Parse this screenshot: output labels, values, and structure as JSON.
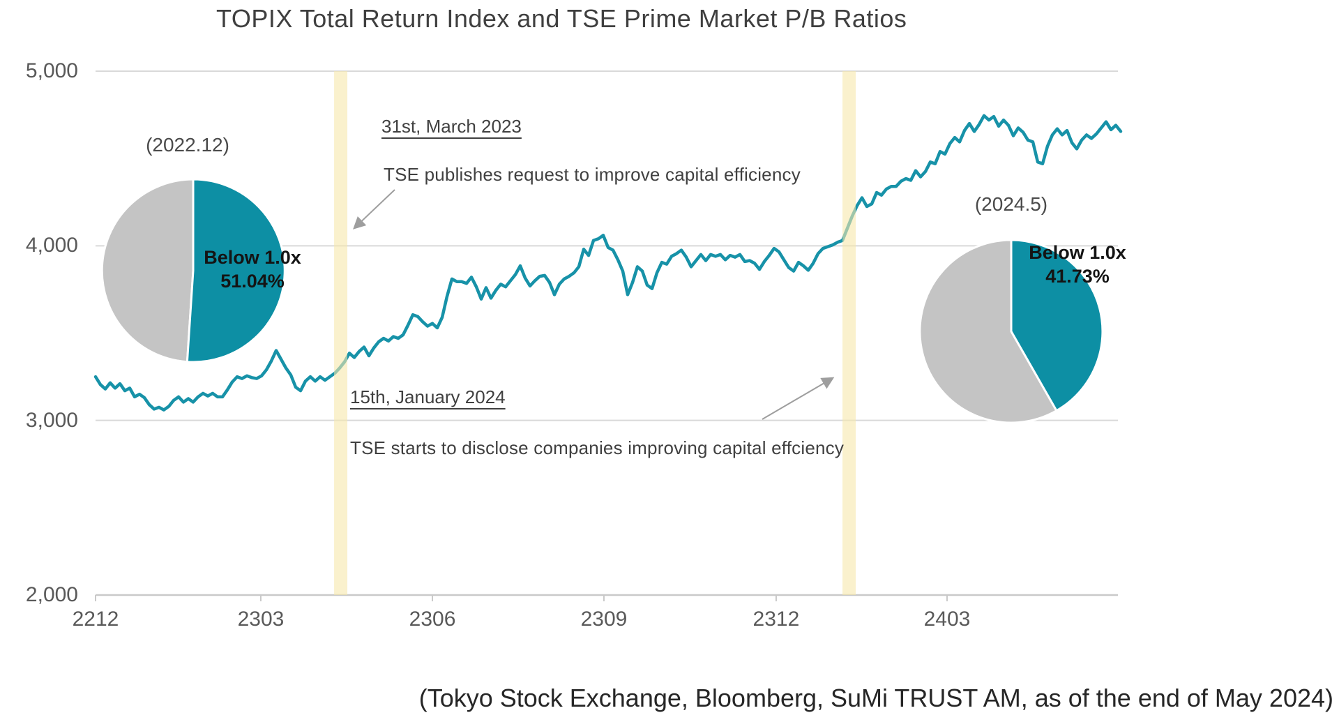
{
  "title": "TOPIX Total Return Index and TSE Prime Market P/B Ratios",
  "source_note": "(Tokyo Stock Exchange, Bloomberg, SuMi TRUST AM, as of the end of May 2024)",
  "annotations": {
    "march2023": {
      "date": "31st, March 2023",
      "text": "TSE publishes request to improve capital efficiency"
    },
    "january2024": {
      "date": "15th, January 2024",
      "text": "TSE starts to disclose companies improving capital effciency"
    }
  },
  "colors": {
    "line_teal": "#1792A8",
    "pie_teal": "#0D8FA4",
    "pie_gray": "#C4C4C4",
    "band_fill": "#F7E7AB",
    "band_opacity": 0.6,
    "gridline": "#D9D9D9",
    "axis": "#C9C9C9",
    "arrow": "#9E9E9E",
    "tick_text": "#595959"
  },
  "chart_data": [
    {
      "type": "line",
      "title": "TOPIX Total Return Index and TSE Prime Market P/B Ratios",
      "xlabel": "",
      "ylabel": "",
      "ylim": [
        2000,
        5000
      ],
      "grid": true,
      "y_axis": {
        "ticks": [
          {
            "label": "5,000",
            "value": 5000
          },
          {
            "label": "4,000",
            "value": 4000
          },
          {
            "label": "3,000",
            "value": 3000
          },
          {
            "label": "2,000",
            "value": 2000
          }
        ]
      },
      "x_axis": {
        "ticks": [
          {
            "label": "2212",
            "f": 0.0
          },
          {
            "label": "2303",
            "f": 0.1612
          },
          {
            "label": "2306",
            "f": 0.3286
          },
          {
            "label": "2309",
            "f": 0.4959
          },
          {
            "label": "2312",
            "f": 0.6639
          },
          {
            "label": "2403",
            "f": 0.8306
          }
        ]
      },
      "highlight_bands": [
        {
          "f0": 0.2327,
          "f1": 0.2456,
          "event": "31st, March 2023"
        },
        {
          "f0": 0.7286,
          "f1": 0.7415,
          "event": "15th, January 2024"
        }
      ],
      "series": [
        {
          "name": "TOPIX Total Return Index",
          "values": [
            3250,
            3205,
            3180,
            3215,
            3185,
            3210,
            3170,
            3185,
            3135,
            3150,
            3130,
            3090,
            3065,
            3075,
            3060,
            3080,
            3115,
            3135,
            3105,
            3125,
            3105,
            3135,
            3155,
            3140,
            3155,
            3135,
            3135,
            3175,
            3220,
            3250,
            3240,
            3255,
            3245,
            3240,
            3255,
            3290,
            3340,
            3400,
            3350,
            3300,
            3260,
            3190,
            3170,
            3225,
            3250,
            3225,
            3250,
            3230,
            3250,
            3270,
            3300,
            3335,
            3385,
            3360,
            3395,
            3420,
            3370,
            3415,
            3450,
            3470,
            3455,
            3480,
            3470,
            3490,
            3545,
            3605,
            3595,
            3565,
            3540,
            3555,
            3530,
            3590,
            3710,
            3810,
            3795,
            3795,
            3785,
            3820,
            3765,
            3695,
            3760,
            3700,
            3745,
            3780,
            3765,
            3800,
            3835,
            3885,
            3815,
            3770,
            3800,
            3825,
            3830,
            3790,
            3720,
            3780,
            3810,
            3825,
            3845,
            3880,
            3980,
            3945,
            4030,
            4040,
            4060,
            3990,
            3975,
            3920,
            3855,
            3720,
            3790,
            3880,
            3855,
            3775,
            3755,
            3845,
            3905,
            3895,
            3940,
            3955,
            3975,
            3935,
            3880,
            3915,
            3950,
            3915,
            3950,
            3940,
            3950,
            3920,
            3945,
            3935,
            3950,
            3910,
            3915,
            3900,
            3865,
            3910,
            3945,
            3985,
            3965,
            3920,
            3875,
            3855,
            3905,
            3885,
            3860,
            3900,
            3955,
            3985,
            3995,
            4005,
            4020,
            4030,
            4100,
            4170,
            4230,
            4275,
            4225,
            4240,
            4305,
            4290,
            4325,
            4340,
            4340,
            4370,
            4385,
            4375,
            4430,
            4395,
            4425,
            4480,
            4470,
            4540,
            4525,
            4585,
            4620,
            4595,
            4660,
            4700,
            4655,
            4695,
            4745,
            4720,
            4740,
            4685,
            4720,
            4690,
            4630,
            4675,
            4650,
            4605,
            4595,
            4480,
            4470,
            4570,
            4635,
            4670,
            4635,
            4660,
            4590,
            4555,
            4605,
            4635,
            4615,
            4640,
            4675,
            4710,
            4665,
            4690,
            4655
          ]
        }
      ]
    },
    {
      "type": "pie",
      "caption": "(2022.12)",
      "slices": [
        {
          "label": "Below 1.0x",
          "pct": 51.04,
          "pct_label": "51.04%",
          "color": "#0D8FA4"
        },
        {
          "label": "",
          "pct": 48.96,
          "pct_label": "",
          "color": "#C4C4C4"
        }
      ]
    },
    {
      "type": "pie",
      "caption": "(2024.5)",
      "slices": [
        {
          "label": "Below 1.0x",
          "pct": 41.73,
          "pct_label": "41.73%",
          "color": "#0D8FA4"
        },
        {
          "label": "",
          "pct": 58.27,
          "pct_label": "",
          "color": "#C4C4C4"
        }
      ]
    }
  ]
}
